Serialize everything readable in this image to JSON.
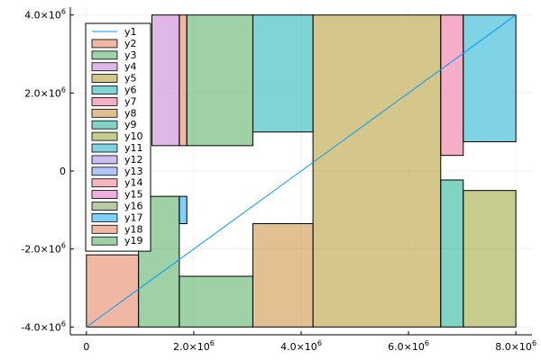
{
  "chart_data": {
    "type": "area",
    "title": "",
    "xlabel": "",
    "ylabel": "",
    "xlim": [
      -300000,
      8300000
    ],
    "ylim": [
      -4200000,
      4200000
    ],
    "grid": true,
    "legend_position": "top-left",
    "x_ticks": [
      {
        "value": 0,
        "label": "0",
        "mantissa": "0",
        "exponent": ""
      },
      {
        "value": 2000000,
        "label": "2.0×10^6",
        "mantissa": "2.0×10",
        "exponent": "6"
      },
      {
        "value": 4000000,
        "label": "4.0×10^6",
        "mantissa": "4.0×10",
        "exponent": "6"
      },
      {
        "value": 6000000,
        "label": "6.0×10^6",
        "mantissa": "6.0×10",
        "exponent": "6"
      },
      {
        "value": 8000000,
        "label": "8.0×10^6",
        "mantissa": "8.0×10",
        "exponent": "6"
      }
    ],
    "y_ticks": [
      {
        "value": 4000000,
        "label": "4.0×10^6",
        "mantissa": "4.0×10",
        "exponent": "6"
      },
      {
        "value": 2000000,
        "label": "2.0×10^6",
        "mantissa": "2.0×10",
        "exponent": "6"
      },
      {
        "value": 0,
        "label": "0",
        "mantissa": "0",
        "exponent": ""
      },
      {
        "value": -2000000,
        "label": "-2.0×10^6",
        "mantissa": "-2.0×10",
        "exponent": "6"
      },
      {
        "value": -4000000,
        "label": "-4.0×10^6",
        "mantissa": "-4.0×10",
        "exponent": "6"
      }
    ],
    "line": {
      "name": "y1",
      "color": "#009af9",
      "x": [
        0,
        8000000
      ],
      "y": [
        -4000000,
        4000000
      ]
    },
    "series": [
      {
        "name": "y2",
        "color": "#e26f46",
        "x": [
          0,
          970000
        ],
        "y": [
          -4000000,
          -2150000
        ]
      },
      {
        "name": "y3",
        "color": "#3da44d",
        "x": [
          970000,
          1730000
        ],
        "y": [
          -4000000,
          -650000
        ]
      },
      {
        "name": "y4",
        "color": "#c271d2",
        "x": [
          1220000,
          1730000
        ],
        "y": [
          650000,
          4000000
        ]
      },
      {
        "name": "y5",
        "color": "#ac8d18",
        "x": [
          4220000,
          6600000
        ],
        "y": [
          -4000000,
          4000000
        ]
      },
      {
        "name": "y6",
        "color": "#00a9ad",
        "x": [
          3100000,
          4220000
        ],
        "y": [
          1000000,
          4000000
        ]
      },
      {
        "name": "y7",
        "color": "#ed5d92",
        "x": [
          6600000,
          7020000
        ],
        "y": [
          400000,
          4000000
        ]
      },
      {
        "name": "y8",
        "color": "#c68125",
        "x": [
          3100000,
          4220000
        ],
        "y": [
          -4000000,
          -1350000
        ]
      },
      {
        "name": "y9",
        "color": "#00a98d",
        "x": [
          6600000,
          7020000
        ],
        "y": [
          -4000000,
          -230000
        ]
      },
      {
        "name": "y10",
        "color": "#8e971e",
        "x": [
          7020000,
          8000000
        ],
        "y": [
          -4000000,
          -500000
        ]
      },
      {
        "name": "y11",
        "color": "#00a8cb",
        "x": [
          7020000,
          8000000
        ],
        "y": [
          750000,
          4000000
        ]
      },
      {
        "name": "y12",
        "color": "#9b7fe9",
        "x": [
          0,
          0
        ],
        "y": [
          0,
          0
        ]
      },
      {
        "name": "y13",
        "color": "#618df6",
        "x": [
          0,
          0
        ],
        "y": [
          0,
          0
        ]
      },
      {
        "name": "y14",
        "color": "#f16c7e",
        "x": [
          0,
          0
        ],
        "y": [
          0,
          0
        ]
      },
      {
        "name": "y15",
        "color": "#dc64c0",
        "x": [
          0,
          0
        ],
        "y": [
          0,
          0
        ]
      },
      {
        "name": "y16",
        "color": "#6e9c49",
        "x": [
          0,
          0
        ],
        "y": [
          0,
          0
        ]
      },
      {
        "name": "y17",
        "color": "#00a0fb",
        "x": [
          1730000,
          1870000
        ],
        "y": [
          -1350000,
          -650000
        ]
      },
      {
        "name": "y18",
        "color": "#e26f46",
        "x": [
          1730000,
          1870000
        ],
        "y": [
          650000,
          4000000
        ]
      },
      {
        "name": "y19",
        "color": "#3da44d",
        "x": [
          1870000,
          3100000
        ],
        "y": [
          650000,
          4000000
        ]
      },
      {
        "name": "y19",
        "color": "#3da44d",
        "x": [
          1730000,
          3100000
        ],
        "y": [
          -4000000,
          -2700000
        ]
      }
    ]
  }
}
